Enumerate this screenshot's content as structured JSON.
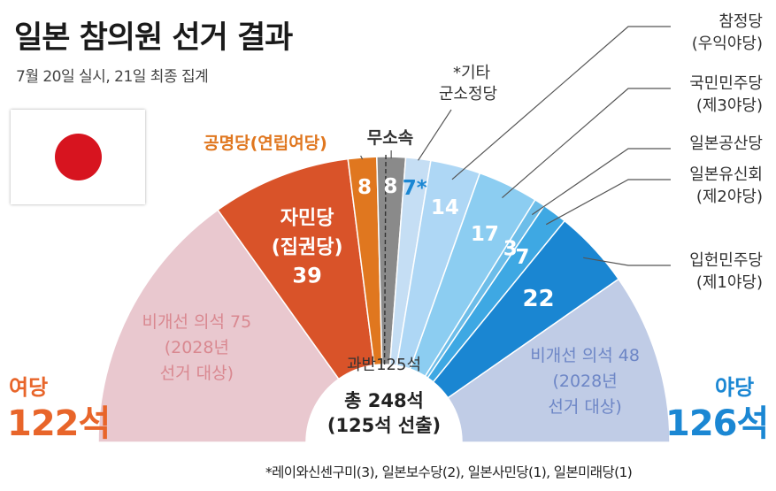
{
  "header": {
    "title": "일본 참의원 선거 결과",
    "subtitle": "7월 20일 실시, 21일 최종 집계"
  },
  "flag": {
    "name": "japan-flag-icon",
    "sun_color": "#d7141f"
  },
  "ruling": {
    "label": "여당",
    "total": "122석",
    "color": "#e8652a"
  },
  "opposition": {
    "label": "야당",
    "total": "126석",
    "color": "#1b87d3"
  },
  "center": {
    "majority": "과반125석",
    "total": "총 248석",
    "elected": "(125석 선출)"
  },
  "footnote": "*레이와신센구미(3), 일본보수당(2), 일본사민당(1), 일본미래당(1)",
  "chart_data": {
    "type": "pie",
    "subtype": "semicircle-parliament",
    "total_seats": 248,
    "majority": 125,
    "seats_elected": 125,
    "segments": [
      {
        "id": "ruling-nonelection",
        "line1": "비개선 의석 75",
        "line2": "(2028년",
        "line3": "선거 대상)",
        "value": 75,
        "color": "#e9c8cf",
        "text_color": "#d98890",
        "group": "ruling"
      },
      {
        "id": "ldp",
        "line1": "자민당",
        "line2": "(집권당)",
        "line3": "39",
        "value": 39,
        "color": "#d95329",
        "text_color": "#ffffff",
        "group": "ruling"
      },
      {
        "id": "komeito",
        "name": "공명당(연립여당)",
        "value": 8,
        "label": "8",
        "color": "#e0771f",
        "text_color": "#ffffff",
        "group": "ruling"
      },
      {
        "id": "independent",
        "name": "무소속",
        "value": 8,
        "label": "8",
        "color": "#8a8a8a",
        "text_color": "#ffffff",
        "group": "other"
      },
      {
        "id": "others",
        "name_line1": "*기타",
        "name_line2": "군소정당",
        "value": 7,
        "label": "7*",
        "color": "#c5def4",
        "text_color": "#1b87d3",
        "group": "opposition"
      },
      {
        "id": "sanseito",
        "name_line1": "참정당",
        "name_line2": "(우익야당)",
        "value": 14,
        "label": "14",
        "color": "#aed7f5",
        "text_color": "#ffffff",
        "group": "opposition"
      },
      {
        "id": "dpfp",
        "name_line1": "국민민주당",
        "name_line2": "(제3야당)",
        "value": 17,
        "label": "17",
        "color": "#8ccdf1",
        "text_color": "#ffffff",
        "group": "opposition"
      },
      {
        "id": "jcp",
        "name_line1": "일본공산당",
        "value": 3,
        "label": "3",
        "color": "#6cbde9",
        "text_color": "#ffffff",
        "group": "opposition"
      },
      {
        "id": "ishin",
        "name_line1": "일본유신회",
        "name_line2": "(제2야당)",
        "value": 7,
        "label": "7",
        "color": "#3ea8e3",
        "text_color": "#ffffff",
        "group": "opposition"
      },
      {
        "id": "cdp",
        "name_line1": "입헌민주당",
        "name_line2": "(제1야당)",
        "value": 22,
        "label": "22",
        "color": "#1a86d2",
        "text_color": "#ffffff",
        "group": "opposition"
      },
      {
        "id": "opposition-nonelection",
        "line1": "비개선 의석 48",
        "line2": "(2028년",
        "line3": "선거 대상)",
        "value": 48,
        "color": "#c0cce6",
        "text_color": "#6d86c6",
        "group": "opposition"
      }
    ]
  }
}
